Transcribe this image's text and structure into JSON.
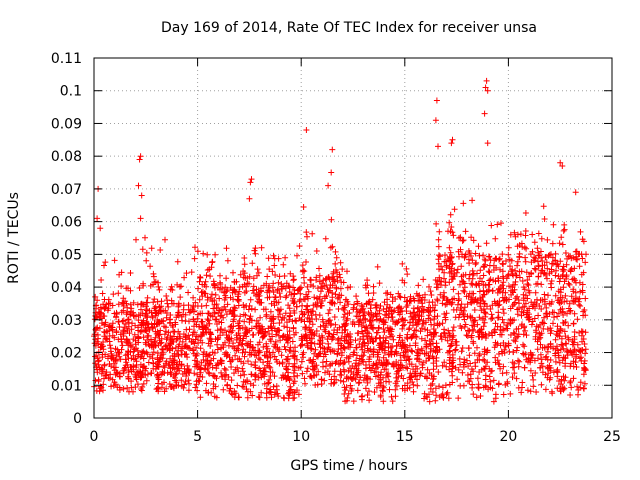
{
  "chart_data": {
    "type": "scatter",
    "title": "Day 169 of 2014, Rate Of TEC Index for receiver unsa",
    "xlabel": "GPS time / hours",
    "ylabel": "ROTI / TECUs",
    "xlim": [
      0,
      25
    ],
    "ylim": [
      0,
      0.11
    ],
    "x_ticks": [
      0,
      5,
      10,
      15,
      20,
      25
    ],
    "x_tick_labels": [
      "0",
      "5",
      "10",
      "15",
      "20",
      "25"
    ],
    "y_ticks": [
      0,
      0.01,
      0.02,
      0.03,
      0.04,
      0.05,
      0.06,
      0.07,
      0.08,
      0.09,
      0.1,
      0.11
    ],
    "y_tick_labels": [
      "0",
      "0.01",
      "0.02",
      "0.03",
      "0.04",
      "0.05",
      "0.06",
      "0.07",
      "0.08",
      "0.09",
      "0.1",
      "0.11"
    ],
    "grid": true,
    "marker": "+",
    "color": "#ff0000",
    "x_extent": [
      0,
      23.75
    ],
    "bands": [
      {
        "x_start": 0,
        "x_end": 5,
        "min": 0.008,
        "typical_low": 0.013,
        "typical_high": 0.035,
        "max": 0.06
      },
      {
        "x_start": 5,
        "x_end": 10,
        "min": 0.006,
        "typical_low": 0.012,
        "typical_high": 0.04,
        "max": 0.056
      },
      {
        "x_start": 10,
        "x_end": 12,
        "min": 0.01,
        "typical_low": 0.015,
        "typical_high": 0.045,
        "max": 0.066
      },
      {
        "x_start": 12,
        "x_end": 16.5,
        "min": 0.005,
        "typical_low": 0.012,
        "typical_high": 0.035,
        "max": 0.05
      },
      {
        "x_start": 16.5,
        "x_end": 20,
        "min": 0.006,
        "typical_low": 0.015,
        "typical_high": 0.05,
        "max": 0.07
      },
      {
        "x_start": 20,
        "x_end": 23.75,
        "min": 0.007,
        "typical_low": 0.015,
        "typical_high": 0.05,
        "max": 0.07
      }
    ],
    "notable_points": [
      {
        "x": 0.15,
        "y": 0.061
      },
      {
        "x": 0.2,
        "y": 0.07
      },
      {
        "x": 0.3,
        "y": 0.058
      },
      {
        "x": 2.2,
        "y": 0.079
      },
      {
        "x": 2.25,
        "y": 0.08
      },
      {
        "x": 2.15,
        "y": 0.071
      },
      {
        "x": 2.3,
        "y": 0.068
      },
      {
        "x": 2.25,
        "y": 0.061
      },
      {
        "x": 7.55,
        "y": 0.072
      },
      {
        "x": 7.6,
        "y": 0.073
      },
      {
        "x": 7.5,
        "y": 0.067
      },
      {
        "x": 10.25,
        "y": 0.088
      },
      {
        "x": 11.5,
        "y": 0.082
      },
      {
        "x": 11.45,
        "y": 0.075
      },
      {
        "x": 11.3,
        "y": 0.071
      },
      {
        "x": 16.55,
        "y": 0.097
      },
      {
        "x": 16.5,
        "y": 0.091
      },
      {
        "x": 16.6,
        "y": 0.083
      },
      {
        "x": 17.3,
        "y": 0.085
      },
      {
        "x": 17.25,
        "y": 0.084
      },
      {
        "x": 18.95,
        "y": 0.103
      },
      {
        "x": 19.0,
        "y": 0.1
      },
      {
        "x": 18.9,
        "y": 0.101
      },
      {
        "x": 18.85,
        "y": 0.093
      },
      {
        "x": 19.0,
        "y": 0.084
      },
      {
        "x": 22.5,
        "y": 0.078
      },
      {
        "x": 22.6,
        "y": 0.077
      },
      {
        "x": 23.25,
        "y": 0.069
      },
      {
        "x": 19.3,
        "y": 0.005
      },
      {
        "x": 22.1,
        "y": 0.008
      },
      {
        "x": 16.2,
        "y": 0.005
      }
    ]
  }
}
